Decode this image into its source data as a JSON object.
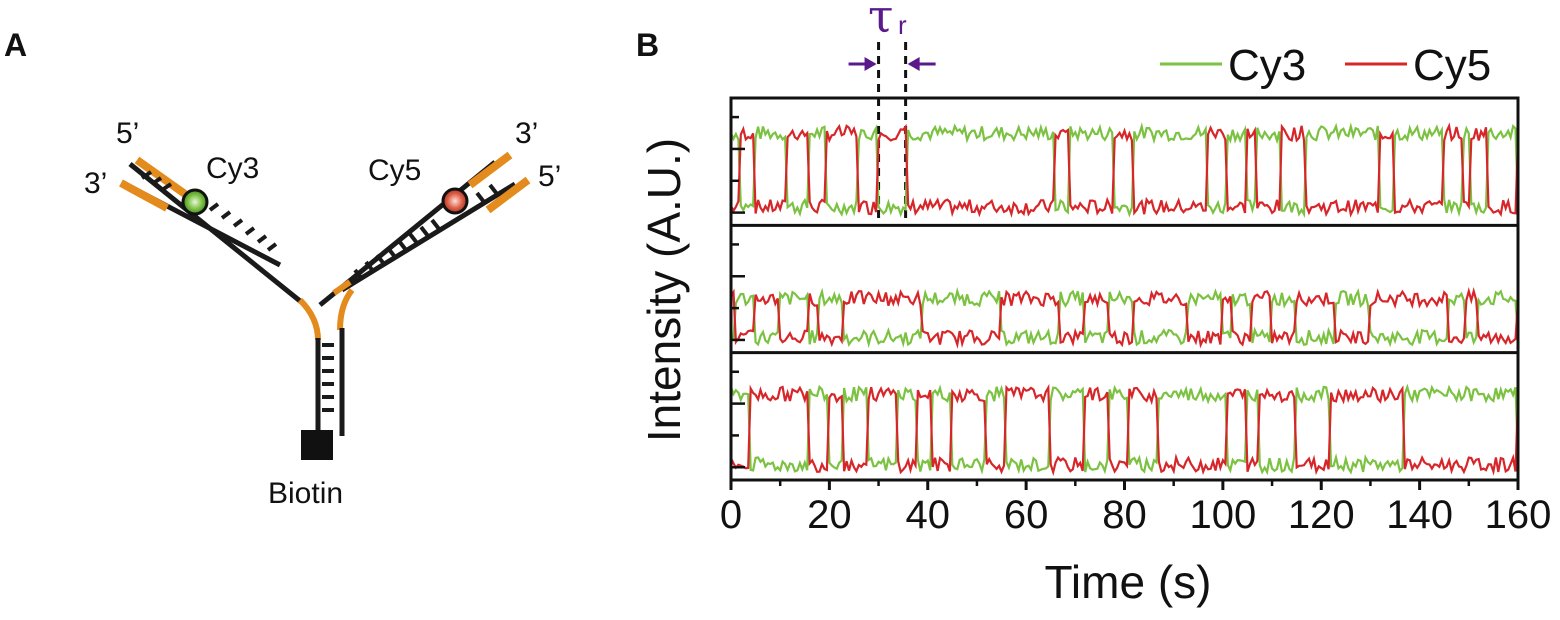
{
  "panel_a": {
    "label": "A",
    "strand_ends": {
      "left_top": "5’",
      "left_bottom": "3’",
      "right_top": "3’",
      "right_bottom": "5’"
    },
    "dye_left": "Cy3",
    "dye_right": "Cy5",
    "anchor": "Biotin",
    "colors": {
      "strand": "#1a1a1a",
      "overhang": "#e38b1c",
      "cy3": "#7bc043",
      "cy5": "#e0604a",
      "biotin": "#111111"
    }
  },
  "panel_b": {
    "label": "B",
    "annotation": {
      "symbol": "τ",
      "subscript": "r",
      "t_start": 30.0,
      "t_end": 35.5,
      "color": "#5a1a8c"
    }
  },
  "chart_data": {
    "type": "line",
    "xlabel": "Time (s)",
    "ylabel": "Intensity (A.U.)",
    "xlim": [
      0,
      160
    ],
    "xticks": [
      0,
      20,
      40,
      60,
      80,
      100,
      120,
      140,
      160
    ],
    "legend": {
      "placement": "top-right",
      "entries": [
        "Cy3",
        "Cy5"
      ]
    },
    "series_colors": {
      "Cy3": "#7cc242",
      "Cy5": "#d7262a"
    },
    "grid": false,
    "stacked_traces": 3,
    "traces": [
      {
        "high_level": 0.78,
        "low_level": 0.08,
        "high_state_intervals": [
          [
            0,
            2
          ],
          [
            5,
            11.5
          ],
          [
            16,
            19.5
          ],
          [
            26,
            30
          ],
          [
            36,
            66
          ],
          [
            69,
            78
          ],
          [
            82,
            97
          ],
          [
            101,
            105
          ],
          [
            107,
            112
          ],
          [
            117,
            132
          ],
          [
            135,
            145
          ],
          [
            149,
            150.5
          ],
          [
            154,
            160
          ]
        ]
      },
      {
        "high_level": 0.42,
        "low_level": 0.05,
        "high_state_intervals": [
          [
            1,
            5
          ],
          [
            10,
            16
          ],
          [
            18,
            23
          ],
          [
            39,
            55
          ],
          [
            67,
            72
          ],
          [
            77,
            82
          ],
          [
            93,
            100
          ],
          [
            102,
            106
          ],
          [
            110,
            115
          ],
          [
            123,
            130
          ],
          [
            146,
            149.5
          ],
          [
            152,
            160
          ]
        ]
      },
      {
        "high_level": 0.72,
        "low_level": 0.05,
        "high_state_intervals": [
          [
            0,
            4
          ],
          [
            16,
            20
          ],
          [
            23,
            28
          ],
          [
            34,
            38
          ],
          [
            41,
            45
          ],
          [
            52,
            56
          ],
          [
            65,
            72
          ],
          [
            77,
            81
          ],
          [
            87,
            101
          ],
          [
            105,
            107.5
          ],
          [
            115,
            122
          ],
          [
            137,
            160
          ]
        ]
      }
    ]
  }
}
